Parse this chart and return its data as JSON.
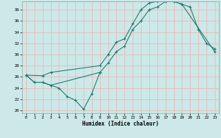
{
  "xlabel": "Humidex (Indice chaleur)",
  "bg_color": "#cce8e8",
  "grid_color": "#e8b8b8",
  "line_color": "#1a7a6e",
  "xlim": [
    -0.5,
    23.5
  ],
  "ylim": [
    19.5,
    39.5
  ],
  "xticks": [
    0,
    1,
    2,
    3,
    4,
    5,
    6,
    7,
    8,
    9,
    10,
    11,
    12,
    13,
    14,
    15,
    16,
    17,
    18,
    19,
    20,
    21,
    22,
    23
  ],
  "yticks": [
    20,
    22,
    24,
    26,
    28,
    30,
    32,
    34,
    36,
    38
  ],
  "curve1_x": [
    0,
    1,
    2,
    3,
    4,
    5,
    6,
    7,
    8,
    9
  ],
  "curve1_y": [
    26.3,
    25.0,
    25.0,
    24.5,
    24.0,
    22.5,
    21.8,
    20.2,
    23.0,
    26.8
  ],
  "curve2_x": [
    0,
    1,
    2,
    3,
    9,
    10,
    11,
    12,
    13,
    14,
    15,
    16,
    17,
    18,
    19,
    20,
    21,
    22,
    23
  ],
  "curve2_y": [
    26.3,
    25.0,
    25.0,
    24.5,
    26.8,
    28.5,
    30.5,
    31.5,
    34.5,
    36.0,
    38.0,
    38.5,
    39.5,
    39.5,
    39.0,
    38.5,
    34.5,
    32.0,
    31.0
  ],
  "curve3_x": [
    0,
    2,
    3,
    9,
    10,
    11,
    12,
    13,
    14,
    15,
    16,
    17,
    18,
    19,
    23
  ],
  "curve3_y": [
    26.3,
    26.2,
    26.8,
    28.0,
    30.0,
    32.2,
    32.8,
    35.5,
    38.0,
    39.2,
    39.5,
    39.5,
    39.5,
    39.0,
    30.5
  ]
}
